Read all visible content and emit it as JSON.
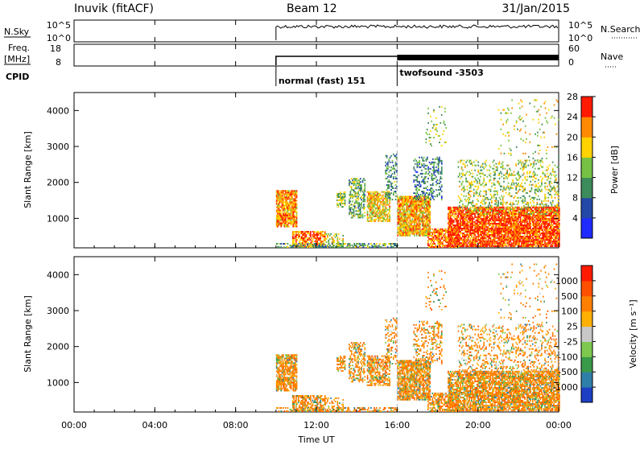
{
  "header": {
    "station": "Inuvik (fitACF)",
    "beam": "Beam 12",
    "date": "31/Jan/2015"
  },
  "top_panels": {
    "nsky": {
      "label": "N.Sky",
      "right_label": "N.Search",
      "left_ticks": [
        "10^5",
        "10^0"
      ],
      "right_ticks": [
        "10^5",
        "10^0"
      ]
    },
    "freq": {
      "label_line1": "Freq.",
      "label_line2": "[MHz]",
      "right_label": "Nave",
      "left_ticks": [
        "18",
        "8"
      ],
      "right_ticks": [
        "60",
        "0"
      ]
    },
    "cpid": {
      "label": "CPID",
      "modes": [
        {
          "name": "normal (fast) 151",
          "start_hour": 10.0
        },
        {
          "name": "twofsound -3503",
          "start_hour": 16.0
        }
      ]
    }
  },
  "chart_data": [
    {
      "type": "heatmap",
      "quantity": "Power",
      "colorbar_label": "Power [dB]",
      "ylabel": "Slant Range [km]",
      "ylim": [
        180,
        4500
      ],
      "yticks": [
        1000,
        2000,
        3000,
        4000
      ],
      "colorbar_ticks": [
        4,
        8,
        12,
        16,
        20,
        24,
        28
      ],
      "colorbar_colors": [
        "#1f2bff",
        "#2448a8",
        "#3d8a5a",
        "#76c043",
        "#ffd200",
        "#ff8a00",
        "#ff1a00"
      ],
      "data_start_hour": 10.0
    },
    {
      "type": "heatmap",
      "quantity": "Velocity",
      "colorbar_label": "Velocity [m s⁻¹]",
      "ylabel": "Slant Range [km]",
      "ylim": [
        180,
        4500
      ],
      "yticks": [
        1000,
        2000,
        3000,
        4000
      ],
      "colorbar_ticks": [
        1000,
        500,
        100,
        25,
        -25,
        -100,
        -500,
        -1000
      ],
      "colorbar_colors": [
        "#1c3fc4",
        "#2f7fa8",
        "#3a9a4a",
        "#7ec850",
        "#c8c8c8",
        "#ffb000",
        "#ff8000",
        "#ff5000",
        "#ff1a00"
      ],
      "data_start_hour": 10.0
    }
  ],
  "time_axis": {
    "xlabel": "Time UT",
    "xlim": [
      0,
      24
    ],
    "tick_labels": [
      "00:00",
      "04:00",
      "08:00",
      "12:00",
      "16:00",
      "20:00",
      "00:00"
    ]
  }
}
